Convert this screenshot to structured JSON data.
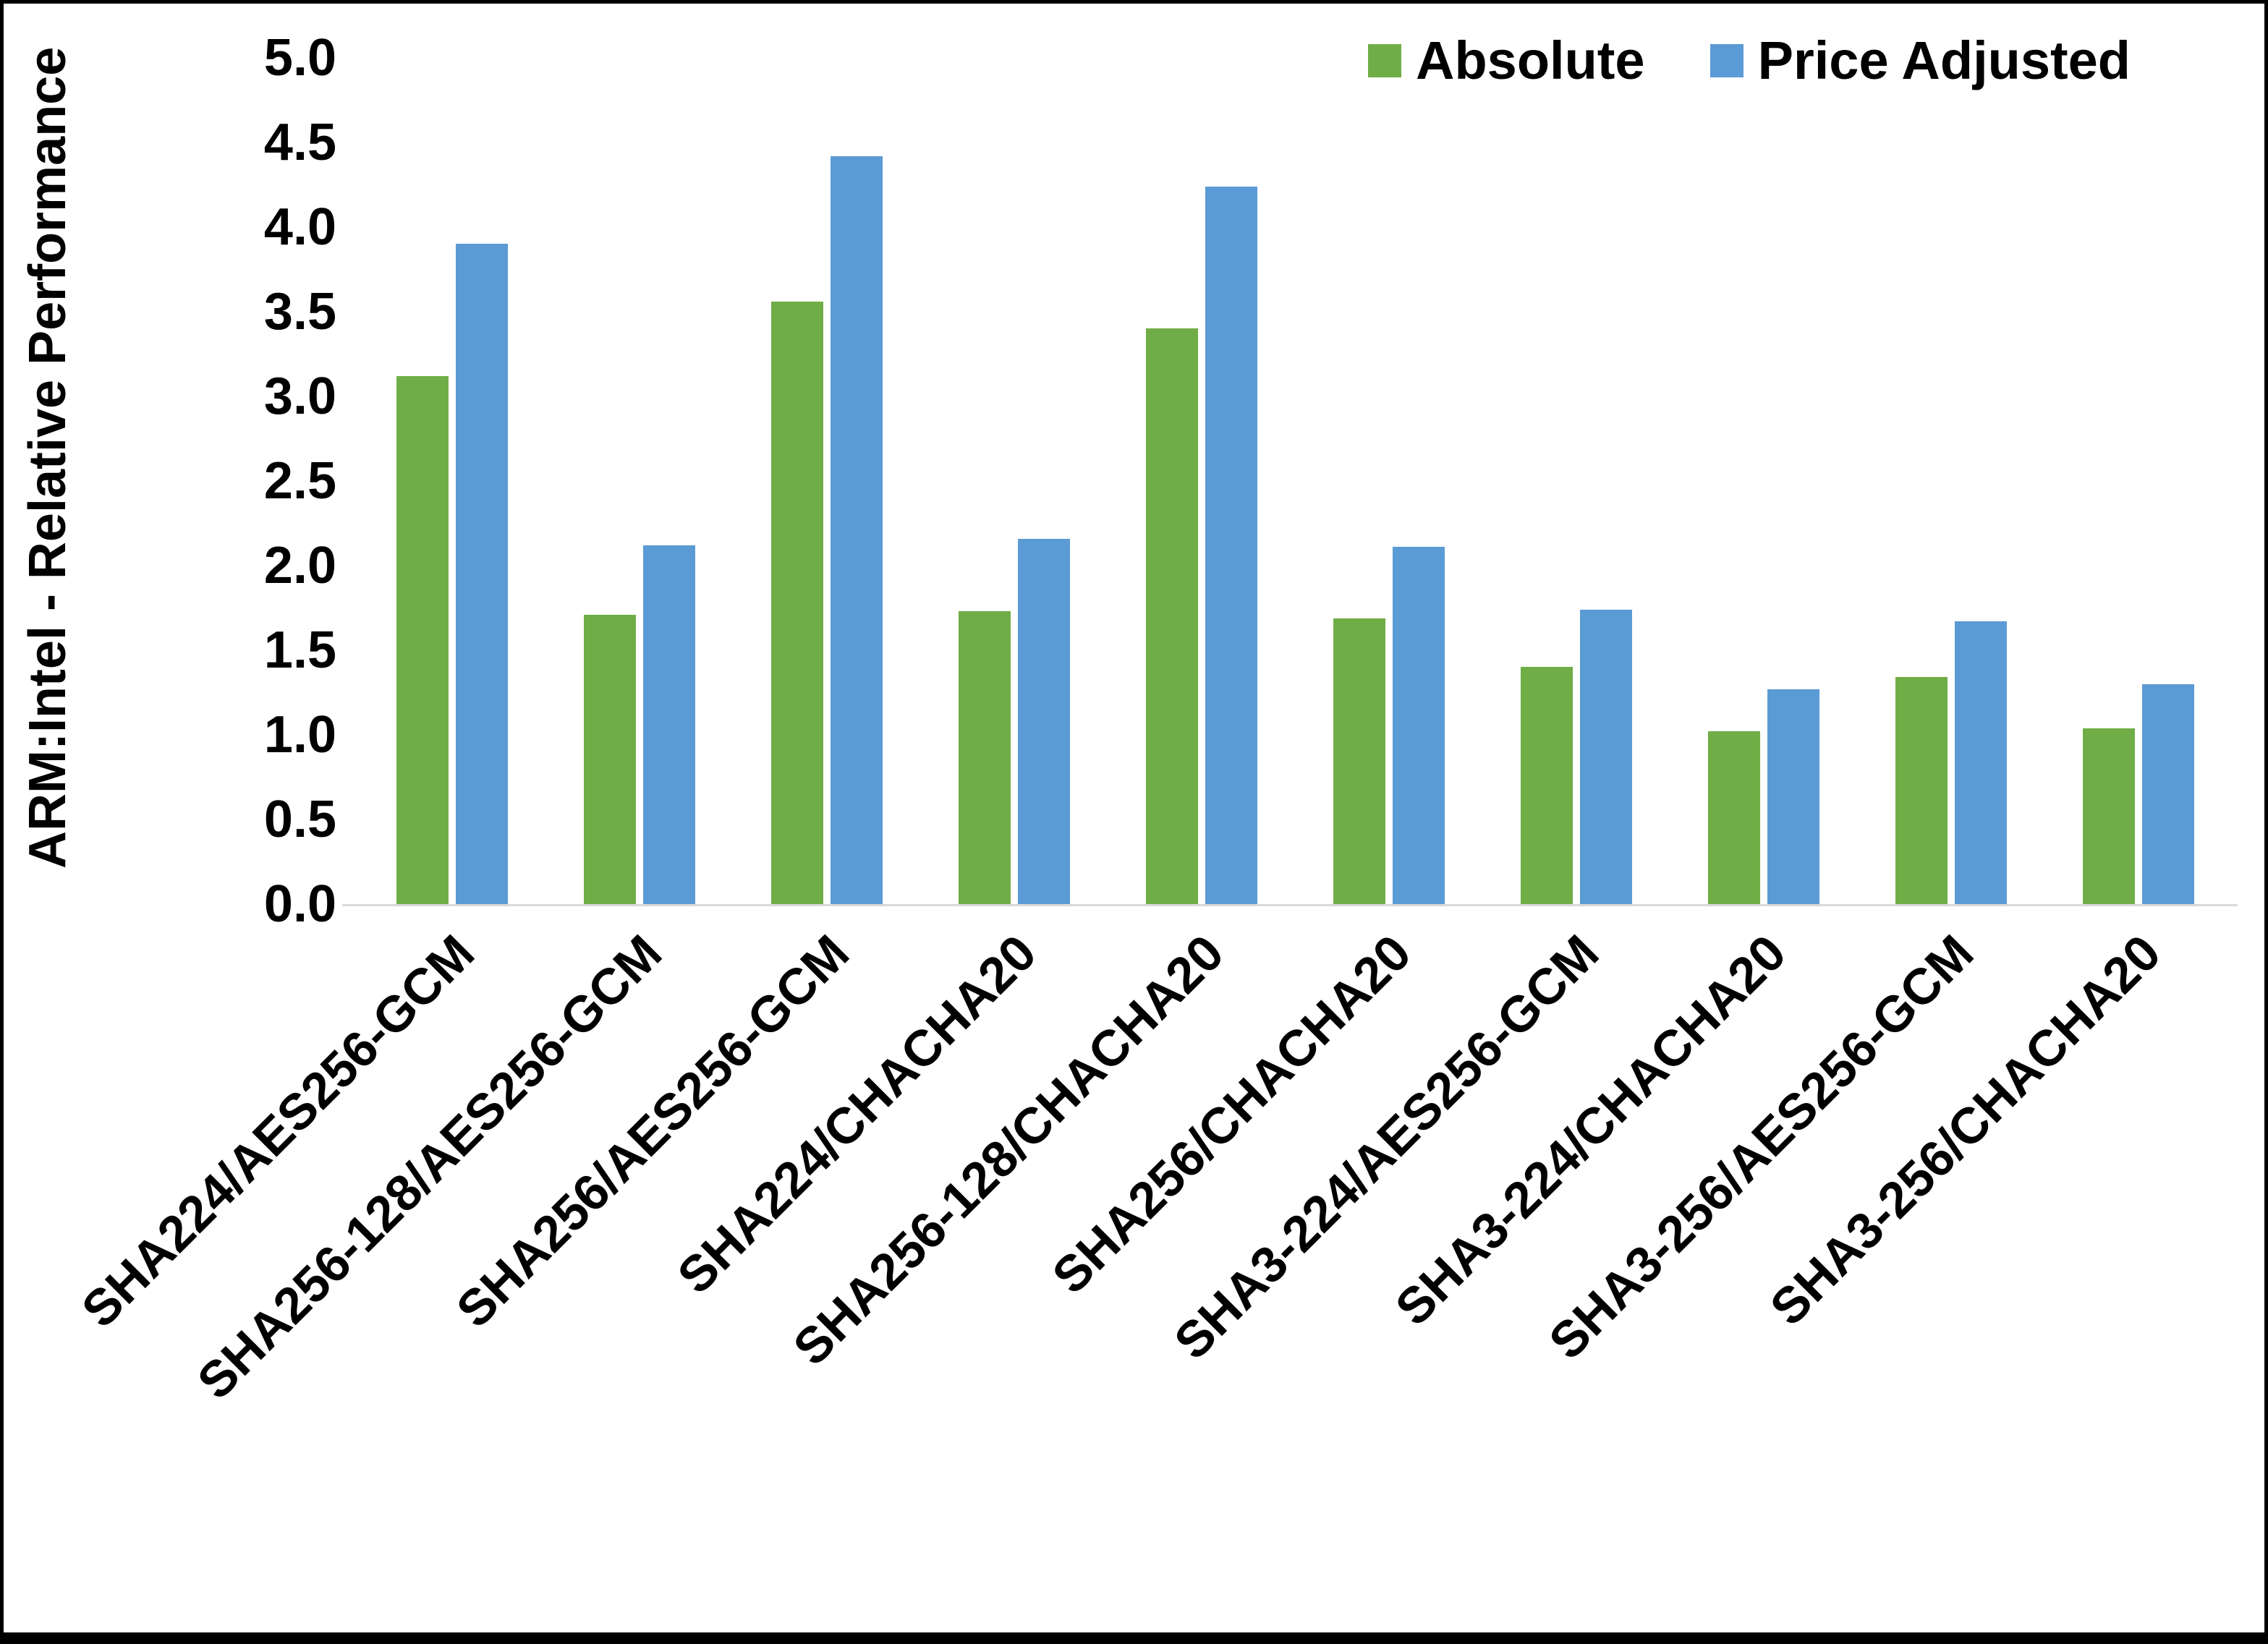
{
  "chart_data": {
    "type": "bar",
    "title": "",
    "ylabel": "ARM:Intel - Relative Performance",
    "xlabel": "",
    "ylim": [
      0,
      5
    ],
    "ytick_step": 0.5,
    "y_ticks": [
      "0.0",
      "0.5",
      "1.0",
      "1.5",
      "2.0",
      "2.5",
      "3.0",
      "3.5",
      "4.0",
      "4.5",
      "5.0"
    ],
    "grid": false,
    "legend_position": "top-right",
    "categories": [
      "SHA224/AES256-GCM",
      "SHA256-128/AES256-GCM",
      "SHA256/AES256-GCM",
      "SHA224/CHACHA20",
      "SHA256-128/CHACHA20",
      "SHA256/CHACHA20",
      "SHA3-224/AES256-GCM",
      "SHA3-224/CHACHA20",
      "SHA3-256/AES256-GCM",
      "SHA3-256/CHACHA20"
    ],
    "series": [
      {
        "name": "Absolute",
        "color": "#70AD47",
        "values": [
          3.12,
          1.71,
          3.56,
          1.73,
          3.4,
          1.69,
          1.4,
          1.02,
          1.34,
          1.04
        ]
      },
      {
        "name": "Price Adjusted",
        "color": "#5B9BD5",
        "values": [
          3.9,
          2.12,
          4.42,
          2.16,
          4.24,
          2.11,
          1.74,
          1.27,
          1.67,
          1.3
        ]
      }
    ]
  }
}
